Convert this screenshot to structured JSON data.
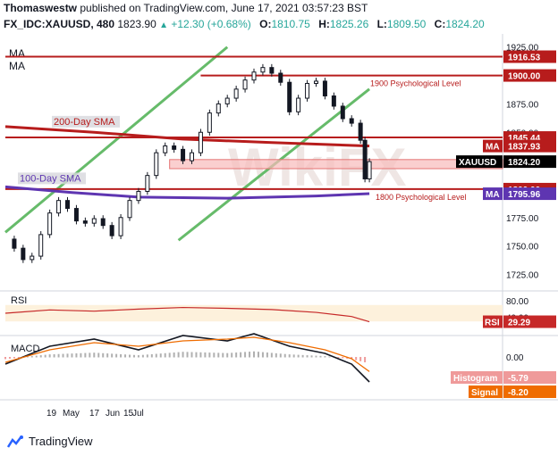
{
  "header": {
    "author": "Thomaswestw",
    "published_text": "published on TradingView.com, June 17, 2021 03:57:23 BST",
    "symbol": "FX_IDC:XAUUSD, 480",
    "last": "1823.90",
    "change_icon": "triangle-up-icon",
    "change_glyph": "▲",
    "change": "+12.30 (+0.68%)",
    "ohlc": [
      {
        "label": "O:",
        "value": "1810.75"
      },
      {
        "label": "H:",
        "value": "1825.26"
      },
      {
        "label": "L:",
        "value": "1809.50"
      },
      {
        "label": "C:",
        "value": "1824.20"
      }
    ]
  },
  "chart_data": {
    "type": "candlestick",
    "symbol": "XAUUSD",
    "timeframe": "480",
    "price_axis": {
      "range": [
        1712,
        1935
      ],
      "ticks": [
        1725,
        1750,
        1775,
        1800,
        1825,
        1850,
        1875,
        1900,
        1925
      ],
      "tick_labels": [
        "1725.00",
        "1750.00",
        "1775.00",
        "1800.00",
        "1825.00",
        "1850.00",
        "1875.00",
        "1900.00",
        "1925.00"
      ]
    },
    "time_axis": {
      "labels": [
        "19",
        "May",
        "17",
        "Jun",
        "15",
        "Jul"
      ]
    },
    "close_series": [
      {
        "t": 0,
        "c": 1756
      },
      {
        "t": 2,
        "c": 1748
      },
      {
        "t": 4,
        "c": 1738
      },
      {
        "t": 6,
        "c": 1741
      },
      {
        "t": 8,
        "c": 1760
      },
      {
        "t": 10,
        "c": 1779
      },
      {
        "t": 12,
        "c": 1790
      },
      {
        "t": 14,
        "c": 1783
      },
      {
        "t": 16,
        "c": 1772
      },
      {
        "t": 18,
        "c": 1770
      },
      {
        "t": 20,
        "c": 1774
      },
      {
        "t": 22,
        "c": 1768
      },
      {
        "t": 24,
        "c": 1759
      },
      {
        "t": 26,
        "c": 1775
      },
      {
        "t": 28,
        "c": 1790
      },
      {
        "t": 30,
        "c": 1798
      },
      {
        "t": 32,
        "c": 1812
      },
      {
        "t": 34,
        "c": 1832
      },
      {
        "t": 36,
        "c": 1838
      },
      {
        "t": 38,
        "c": 1835
      },
      {
        "t": 40,
        "c": 1825
      },
      {
        "t": 42,
        "c": 1832
      },
      {
        "t": 44,
        "c": 1850
      },
      {
        "t": 46,
        "c": 1867
      },
      {
        "t": 48,
        "c": 1875
      },
      {
        "t": 50,
        "c": 1880
      },
      {
        "t": 52,
        "c": 1888
      },
      {
        "t": 54,
        "c": 1896
      },
      {
        "t": 56,
        "c": 1903
      },
      {
        "t": 58,
        "c": 1907
      },
      {
        "t": 60,
        "c": 1902
      },
      {
        "t": 62,
        "c": 1894
      },
      {
        "t": 64,
        "c": 1868
      },
      {
        "t": 66,
        "c": 1880
      },
      {
        "t": 68,
        "c": 1893
      },
      {
        "t": 70,
        "c": 1895
      },
      {
        "t": 72,
        "c": 1882
      },
      {
        "t": 74,
        "c": 1873
      },
      {
        "t": 76,
        "c": 1862
      },
      {
        "t": 78,
        "c": 1858
      },
      {
        "t": 80,
        "c": 1843
      },
      {
        "t": 81,
        "c": 1809
      },
      {
        "t": 82,
        "c": 1824.2
      }
    ],
    "indicators": [
      {
        "name": "200-Day SMA",
        "color": "#b71c1c",
        "value": "1837.93",
        "points": [
          [
            0,
            1855
          ],
          [
            20,
            1850
          ],
          [
            40,
            1844
          ],
          [
            60,
            1841
          ],
          [
            82,
            1837.9
          ]
        ]
      },
      {
        "name": "100-Day SMA",
        "color": "#5e35b1",
        "value": "1795.96",
        "points": [
          [
            0,
            1802
          ],
          [
            15,
            1797
          ],
          [
            30,
            1793
          ],
          [
            50,
            1792
          ],
          [
            70,
            1794
          ],
          [
            82,
            1796
          ]
        ]
      }
    ],
    "levels": [
      {
        "value": 1916.53,
        "label": "1916.53",
        "text": ""
      },
      {
        "value": 1900.0,
        "label": "1900.00",
        "text": "1900 Psychological Level"
      },
      {
        "value": 1845.44,
        "label": "1845.44",
        "text": ""
      },
      {
        "value": 1800.0,
        "label": "1800.00",
        "text": "1800 Psychological Level"
      }
    ],
    "zone": {
      "from": 1818,
      "to": 1826
    },
    "channel": {
      "color": "#66bb6a",
      "lower": [
        [
          39,
          1755
        ],
        [
          82,
          1888
        ]
      ],
      "upper": [
        [
          0,
          1762
        ],
        [
          50,
          1925
        ]
      ]
    },
    "price_tags": [
      {
        "label": "MA",
        "value": "1837.93",
        "color": "#b71c1c"
      },
      {
        "label": "XAUUSD",
        "value": "1824.20",
        "color": "#000000"
      },
      {
        "label": "MA",
        "value": "1795.96",
        "color": "#5e35b1"
      }
    ],
    "ma_labels": [
      "MA",
      "MA"
    ],
    "rsi": {
      "name": "RSI",
      "value": "29.29",
      "range": [
        0,
        100
      ],
      "tick_labels": [
        "80.00",
        "40.00"
      ],
      "overbought": 70,
      "oversold": 30,
      "points": [
        [
          0,
          50
        ],
        [
          10,
          58
        ],
        [
          20,
          55
        ],
        [
          30,
          60
        ],
        [
          40,
          64
        ],
        [
          50,
          62
        ],
        [
          60,
          59
        ],
        [
          70,
          52
        ],
        [
          78,
          42
        ],
        [
          82,
          29.29
        ]
      ]
    },
    "macd": {
      "name": "MACD",
      "histogram": "-5.79",
      "signal": "-8.20",
      "tick_label": "0.00",
      "macd_points": [
        [
          0,
          -4
        ],
        [
          10,
          6
        ],
        [
          20,
          10
        ],
        [
          30,
          4
        ],
        [
          40,
          12
        ],
        [
          50,
          9
        ],
        [
          56,
          13
        ],
        [
          64,
          6
        ],
        [
          72,
          2
        ],
        [
          78,
          -4
        ],
        [
          82,
          -14
        ]
      ],
      "signal_points": [
        [
          0,
          -3
        ],
        [
          10,
          4
        ],
        [
          20,
          8
        ],
        [
          30,
          6
        ],
        [
          40,
          9
        ],
        [
          50,
          10
        ],
        [
          56,
          11
        ],
        [
          64,
          8
        ],
        [
          72,
          4
        ],
        [
          78,
          -1
        ],
        [
          82,
          -8.2
        ]
      ]
    }
  },
  "footer": {
    "brand": "TradingView",
    "logo_icon": "tradingview-logo-icon"
  },
  "watermark": "WikiFX"
}
